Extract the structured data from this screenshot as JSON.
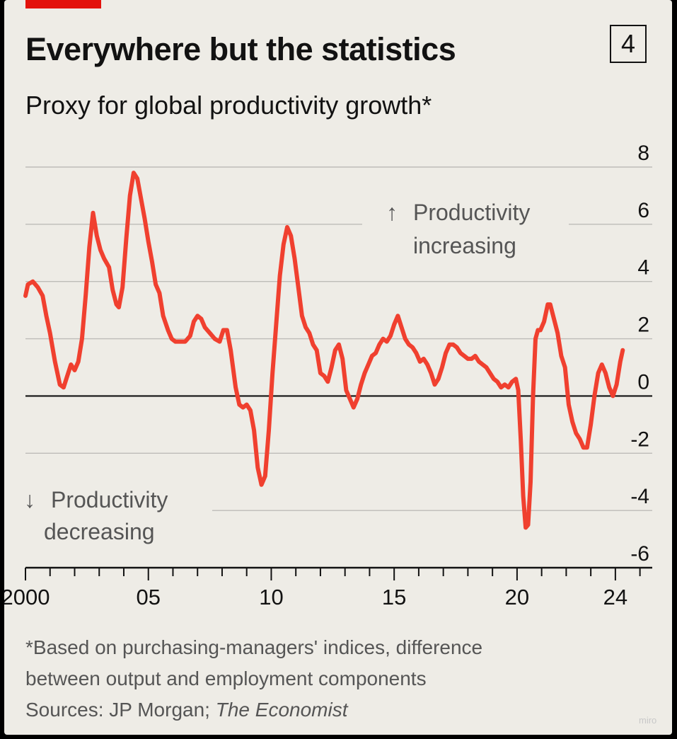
{
  "header": {
    "title": "Everywhere but the statistics",
    "chart_number": "4",
    "subtitle": "Proxy for global productivity growth*"
  },
  "annotations": {
    "up_arrow": "↑",
    "up_line1": "Productivity",
    "up_line2": "increasing",
    "down_arrow": "↓",
    "down_line1": "Productivity",
    "down_line2": "decreasing"
  },
  "footer": {
    "note_line1": "*Based on purchasing-managers' indices, difference",
    "note_line2": "between output and employment components",
    "source_prefix": "Sources: JP Morgan; ",
    "source_italic": "The Economist"
  },
  "watermark": "miro",
  "colors": {
    "background": "#eeece6",
    "series": "#f0402f",
    "brand_red": "#e3120b",
    "text": "#121212",
    "grid": "#bdbcb8",
    "muted_text": "#555555"
  },
  "chart_data": {
    "type": "line",
    "title": "Everywhere but the statistics",
    "subtitle": "Proxy for global productivity growth*",
    "xlabel": "",
    "ylabel": "",
    "ylim": [
      -6,
      8
    ],
    "yticks": [
      8,
      6,
      4,
      2,
      0,
      -2,
      -4,
      -6
    ],
    "xlim": [
      2000,
      2025.5
    ],
    "xticks": [
      {
        "value": 2000,
        "label": "2000"
      },
      {
        "value": 2005,
        "label": "05"
      },
      {
        "value": 2010,
        "label": "10"
      },
      {
        "value": 2015,
        "label": "15"
      },
      {
        "value": 2020,
        "label": "20"
      },
      {
        "value": 2024,
        "label": "24"
      }
    ],
    "grid": true,
    "legend": "none",
    "series": [
      {
        "color": "#f0402f",
        "points": [
          [
            2000.0,
            3.5
          ],
          [
            2000.1,
            3.9
          ],
          [
            2000.3,
            4.0
          ],
          [
            2000.5,
            3.8
          ],
          [
            2000.7,
            3.5
          ],
          [
            2000.85,
            2.8
          ],
          [
            2001.0,
            2.2
          ],
          [
            2001.2,
            1.2
          ],
          [
            2001.4,
            0.4
          ],
          [
            2001.55,
            0.3
          ],
          [
            2001.7,
            0.7
          ],
          [
            2001.85,
            1.1
          ],
          [
            2002.0,
            0.9
          ],
          [
            2002.15,
            1.2
          ],
          [
            2002.3,
            2.0
          ],
          [
            2002.45,
            3.5
          ],
          [
            2002.6,
            5.2
          ],
          [
            2002.75,
            6.4
          ],
          [
            2002.9,
            5.6
          ],
          [
            2003.05,
            5.1
          ],
          [
            2003.2,
            4.8
          ],
          [
            2003.4,
            4.5
          ],
          [
            2003.55,
            3.7
          ],
          [
            2003.7,
            3.2
          ],
          [
            2003.8,
            3.1
          ],
          [
            2003.95,
            3.8
          ],
          [
            2004.1,
            5.5
          ],
          [
            2004.25,
            7.0
          ],
          [
            2004.4,
            7.8
          ],
          [
            2004.55,
            7.6
          ],
          [
            2004.7,
            6.9
          ],
          [
            2004.85,
            6.2
          ],
          [
            2005.0,
            5.4
          ],
          [
            2005.15,
            4.7
          ],
          [
            2005.3,
            3.9
          ],
          [
            2005.45,
            3.6
          ],
          [
            2005.6,
            2.8
          ],
          [
            2005.8,
            2.3
          ],
          [
            2005.95,
            2.0
          ],
          [
            2006.1,
            1.9
          ],
          [
            2006.3,
            1.9
          ],
          [
            2006.5,
            1.9
          ],
          [
            2006.7,
            2.1
          ],
          [
            2006.85,
            2.6
          ],
          [
            2007.0,
            2.8
          ],
          [
            2007.15,
            2.7
          ],
          [
            2007.3,
            2.4
          ],
          [
            2007.5,
            2.2
          ],
          [
            2007.7,
            2.0
          ],
          [
            2007.9,
            1.9
          ],
          [
            2008.05,
            2.3
          ],
          [
            2008.2,
            2.3
          ],
          [
            2008.35,
            1.6
          ],
          [
            2008.55,
            0.3
          ],
          [
            2008.7,
            -0.3
          ],
          [
            2008.85,
            -0.4
          ],
          [
            2009.0,
            -0.3
          ],
          [
            2009.15,
            -0.5
          ],
          [
            2009.3,
            -1.2
          ],
          [
            2009.45,
            -2.5
          ],
          [
            2009.6,
            -3.1
          ],
          [
            2009.75,
            -2.8
          ],
          [
            2009.9,
            -1.2
          ],
          [
            2010.05,
            0.8
          ],
          [
            2010.2,
            2.5
          ],
          [
            2010.35,
            4.2
          ],
          [
            2010.5,
            5.3
          ],
          [
            2010.65,
            5.9
          ],
          [
            2010.8,
            5.6
          ],
          [
            2010.95,
            4.8
          ],
          [
            2011.1,
            3.8
          ],
          [
            2011.25,
            2.8
          ],
          [
            2011.4,
            2.4
          ],
          [
            2011.55,
            2.2
          ],
          [
            2011.7,
            1.8
          ],
          [
            2011.85,
            1.6
          ],
          [
            2012.0,
            0.8
          ],
          [
            2012.15,
            0.7
          ],
          [
            2012.3,
            0.5
          ],
          [
            2012.45,
            1.0
          ],
          [
            2012.6,
            1.6
          ],
          [
            2012.75,
            1.8
          ],
          [
            2012.9,
            1.3
          ],
          [
            2013.05,
            0.2
          ],
          [
            2013.2,
            -0.1
          ],
          [
            2013.35,
            -0.4
          ],
          [
            2013.5,
            -0.1
          ],
          [
            2013.65,
            0.4
          ],
          [
            2013.8,
            0.8
          ],
          [
            2013.95,
            1.1
          ],
          [
            2014.1,
            1.4
          ],
          [
            2014.25,
            1.5
          ],
          [
            2014.4,
            1.8
          ],
          [
            2014.55,
            2.0
          ],
          [
            2014.7,
            1.9
          ],
          [
            2014.85,
            2.1
          ],
          [
            2015.0,
            2.5
          ],
          [
            2015.15,
            2.8
          ],
          [
            2015.3,
            2.4
          ],
          [
            2015.45,
            2.0
          ],
          [
            2015.6,
            1.8
          ],
          [
            2015.75,
            1.7
          ],
          [
            2015.9,
            1.5
          ],
          [
            2016.05,
            1.2
          ],
          [
            2016.2,
            1.3
          ],
          [
            2016.35,
            1.1
          ],
          [
            2016.5,
            0.8
          ],
          [
            2016.65,
            0.4
          ],
          [
            2016.8,
            0.6
          ],
          [
            2016.95,
            1.0
          ],
          [
            2017.1,
            1.5
          ],
          [
            2017.25,
            1.8
          ],
          [
            2017.4,
            1.8
          ],
          [
            2017.55,
            1.7
          ],
          [
            2017.7,
            1.5
          ],
          [
            2017.85,
            1.4
          ],
          [
            2018.0,
            1.3
          ],
          [
            2018.15,
            1.3
          ],
          [
            2018.3,
            1.4
          ],
          [
            2018.45,
            1.2
          ],
          [
            2018.6,
            1.1
          ],
          [
            2018.75,
            1.0
          ],
          [
            2018.9,
            0.8
          ],
          [
            2019.05,
            0.6
          ],
          [
            2019.2,
            0.5
          ],
          [
            2019.35,
            0.3
          ],
          [
            2019.5,
            0.4
          ],
          [
            2019.65,
            0.3
          ],
          [
            2019.8,
            0.5
          ],
          [
            2019.95,
            0.6
          ],
          [
            2020.05,
            0.2
          ],
          [
            2020.15,
            -1.5
          ],
          [
            2020.25,
            -3.5
          ],
          [
            2020.35,
            -4.6
          ],
          [
            2020.45,
            -4.5
          ],
          [
            2020.55,
            -3.0
          ],
          [
            2020.65,
            0.0
          ],
          [
            2020.75,
            2.0
          ],
          [
            2020.85,
            2.3
          ],
          [
            2020.95,
            2.3
          ],
          [
            2021.1,
            2.6
          ],
          [
            2021.25,
            3.2
          ],
          [
            2021.35,
            3.2
          ],
          [
            2021.5,
            2.7
          ],
          [
            2021.65,
            2.2
          ],
          [
            2021.8,
            1.4
          ],
          [
            2021.95,
            1.0
          ],
          [
            2022.1,
            -0.3
          ],
          [
            2022.25,
            -0.9
          ],
          [
            2022.4,
            -1.3
          ],
          [
            2022.55,
            -1.5
          ],
          [
            2022.7,
            -1.8
          ],
          [
            2022.85,
            -1.8
          ],
          [
            2023.0,
            -1.0
          ],
          [
            2023.15,
            0.0
          ],
          [
            2023.3,
            0.8
          ],
          [
            2023.45,
            1.1
          ],
          [
            2023.6,
            0.8
          ],
          [
            2023.75,
            0.3
          ],
          [
            2023.9,
            0.0
          ],
          [
            2024.05,
            0.4
          ],
          [
            2024.2,
            1.2
          ],
          [
            2024.3,
            1.6
          ]
        ]
      }
    ]
  }
}
